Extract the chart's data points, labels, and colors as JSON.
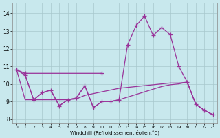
{
  "xlabel": "Windchill (Refroidissement éolien,°C)",
  "background_color": "#c8e8ed",
  "grid_color": "#a8c8cc",
  "line_color": "#993399",
  "xlim": [
    -0.5,
    23.5
  ],
  "ylim": [
    7.8,
    14.6
  ],
  "yticks": [
    8,
    9,
    10,
    11,
    12,
    13,
    14
  ],
  "xticks": [
    0,
    1,
    2,
    3,
    4,
    5,
    6,
    7,
    8,
    9,
    10,
    11,
    12,
    13,
    14,
    15,
    16,
    17,
    18,
    19,
    20,
    21,
    22,
    23
  ],
  "series1_x": [
    0,
    1,
    10
  ],
  "series1_y": [
    10.8,
    10.6,
    10.6
  ],
  "series2_x": [
    0,
    1,
    2,
    3,
    4,
    5,
    6,
    7,
    8,
    9,
    10,
    11,
    12,
    13,
    14,
    15,
    16,
    17,
    18,
    19,
    20,
    21,
    22,
    23
  ],
  "series2_y": [
    10.8,
    10.5,
    9.1,
    9.5,
    9.65,
    8.75,
    9.1,
    9.2,
    9.9,
    8.65,
    9.0,
    9.0,
    9.1,
    12.2,
    13.3,
    13.85,
    12.75,
    13.2,
    12.8,
    11.0,
    10.1,
    8.85,
    8.5,
    8.25
  ],
  "series3_x": [
    0,
    1,
    2,
    3,
    4,
    5,
    6,
    7,
    8,
    9,
    10,
    11,
    12,
    13,
    14,
    15,
    16,
    17,
    18,
    19,
    20,
    21,
    22,
    23
  ],
  "series3_y": [
    10.8,
    9.1,
    9.1,
    9.1,
    9.1,
    9.1,
    9.1,
    9.15,
    9.35,
    9.45,
    9.55,
    9.65,
    9.75,
    9.8,
    9.85,
    9.9,
    9.95,
    10.0,
    10.05,
    10.05,
    10.1,
    8.85,
    8.5,
    8.25
  ],
  "series4_x": [
    0,
    1,
    2,
    3,
    4,
    5,
    6,
    7,
    8,
    9,
    10,
    11,
    12,
    13,
    14,
    15,
    16,
    17,
    18,
    19,
    20,
    21,
    22,
    23
  ],
  "series4_y": [
    10.8,
    10.5,
    9.1,
    9.5,
    9.65,
    8.75,
    9.1,
    9.2,
    9.9,
    8.65,
    9.0,
    9.0,
    9.1,
    9.25,
    9.4,
    9.55,
    9.7,
    9.85,
    9.95,
    10.0,
    10.1,
    8.85,
    8.5,
    8.25
  ]
}
